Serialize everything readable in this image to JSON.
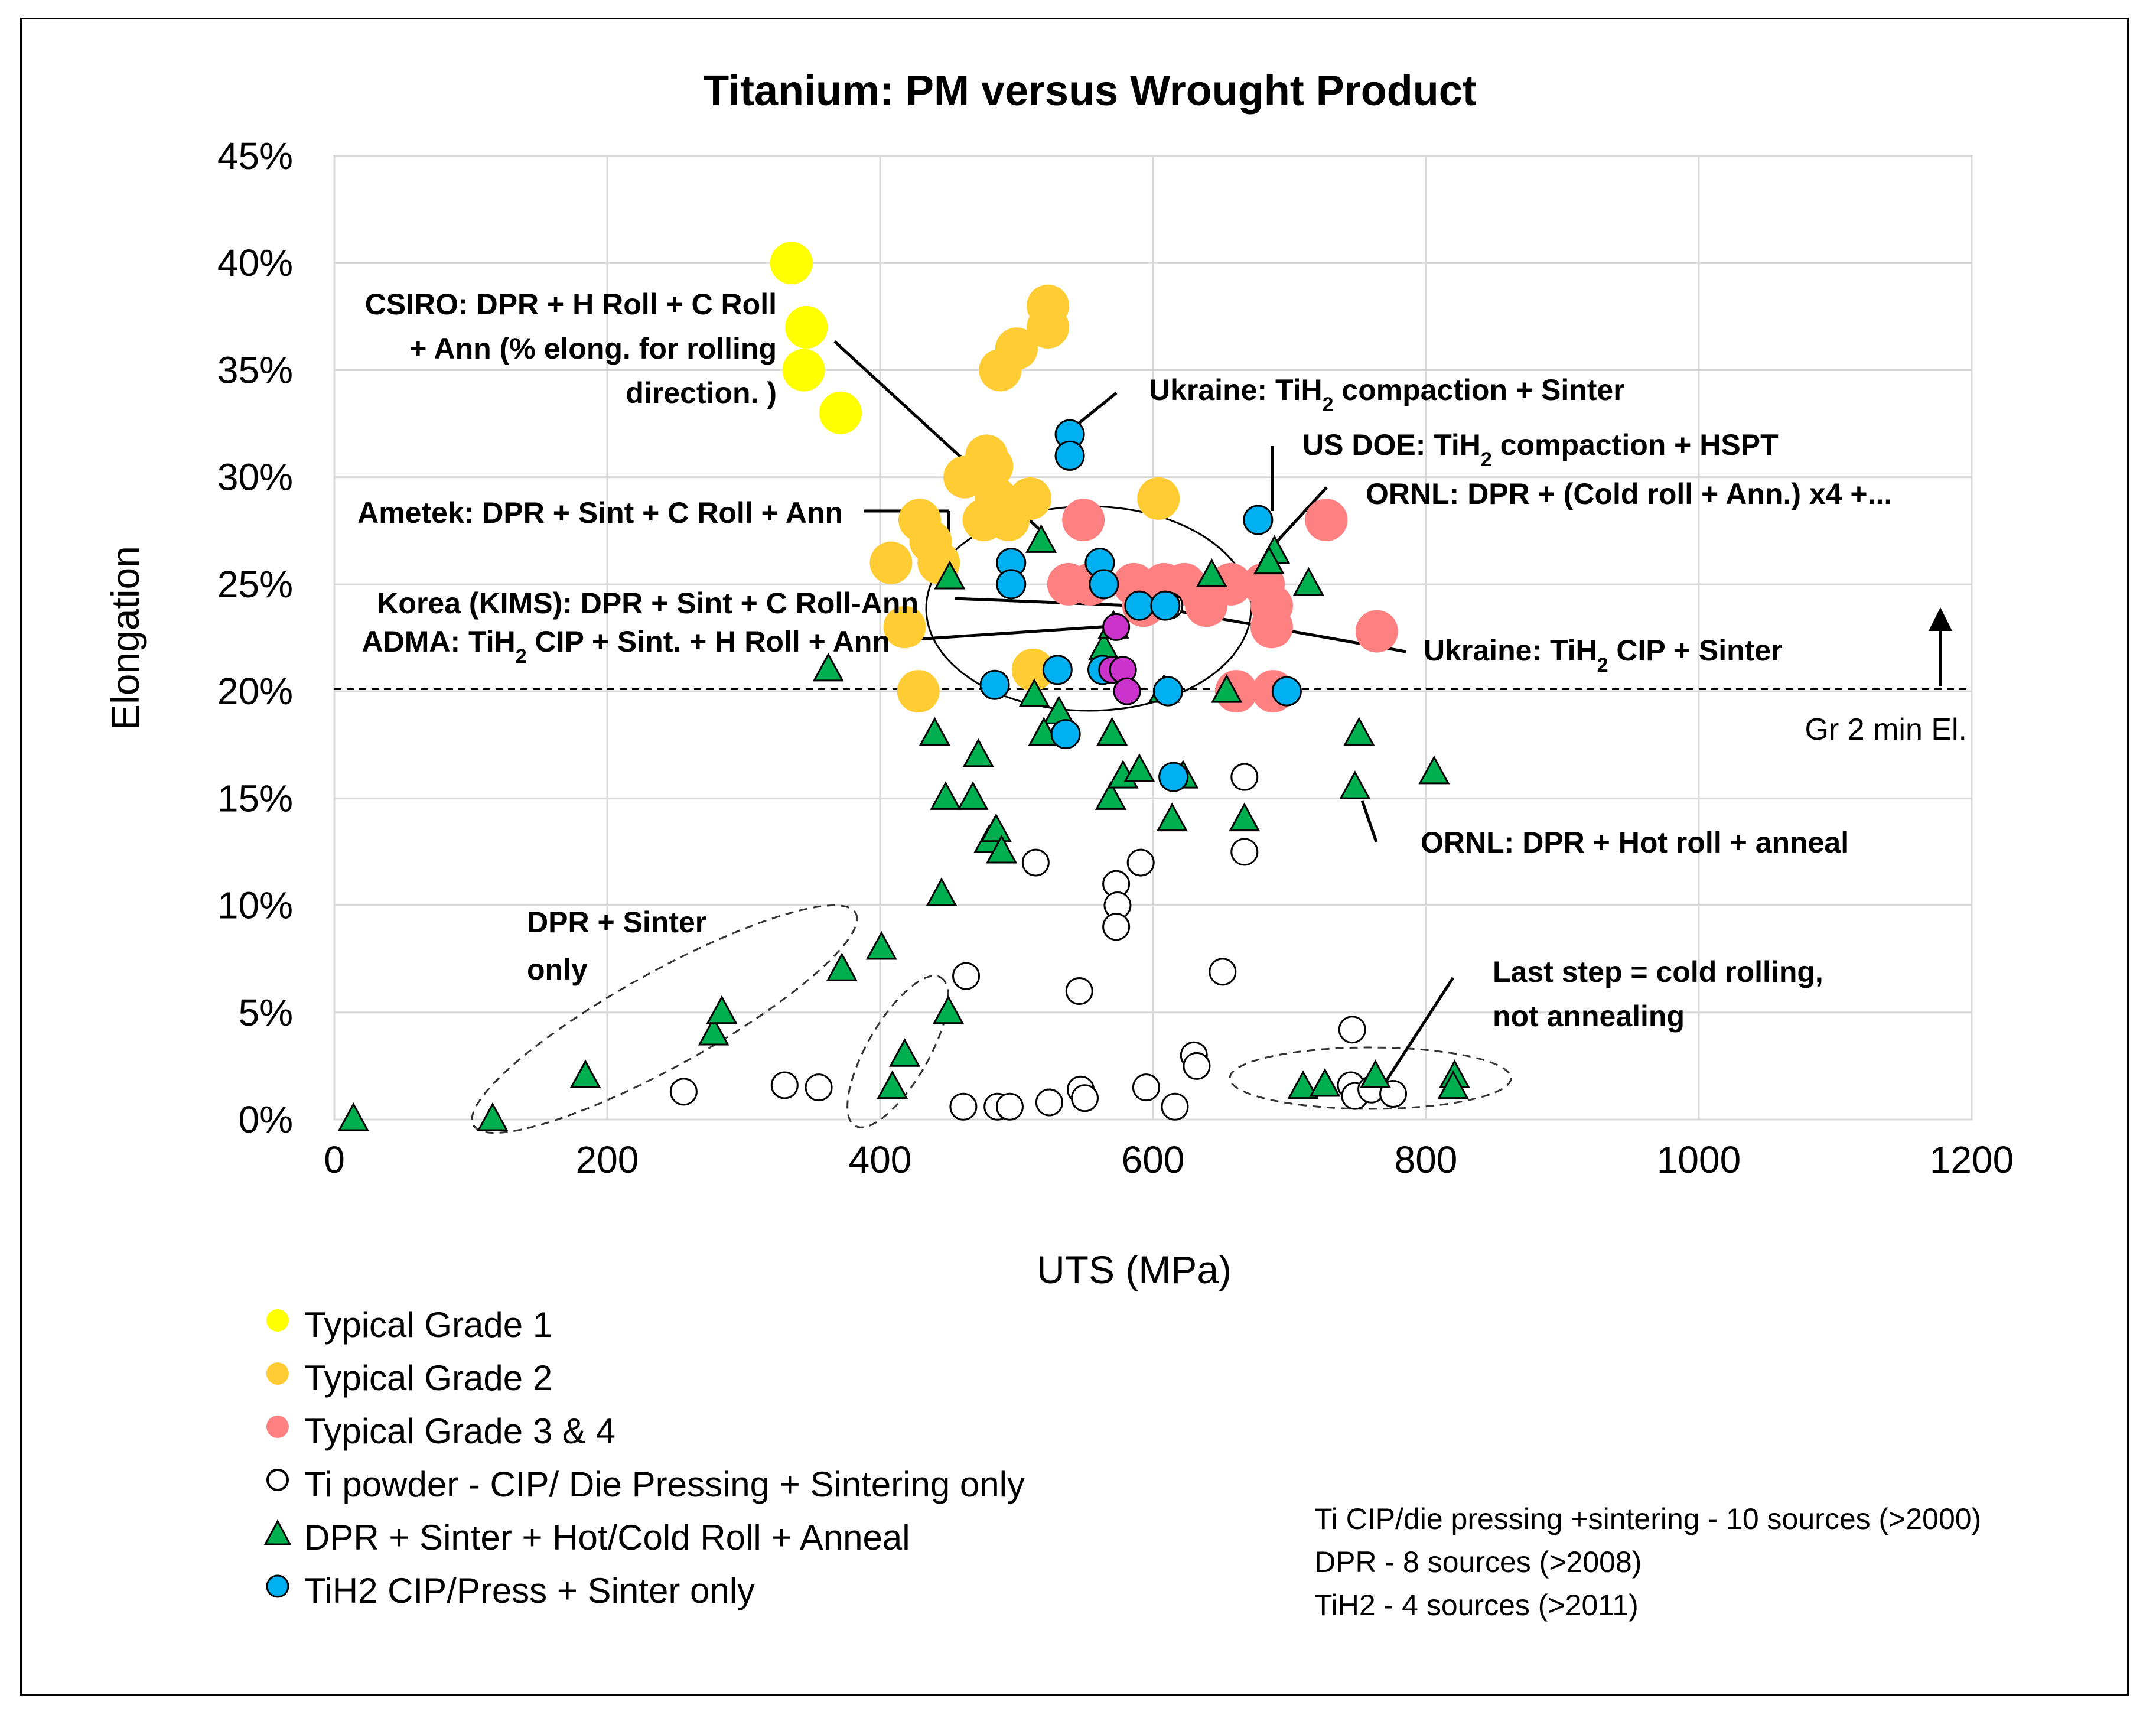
{
  "chart_data": {
    "type": "scatter",
    "title": "Titanium: PM versus Wrought Product",
    "xlabel": "UTS (MPa)",
    "ylabel": "Elongation",
    "xlim": [
      0,
      1200
    ],
    "ylim": [
      0,
      45
    ],
    "xticks": [
      "0",
      "200",
      "400",
      "600",
      "800",
      "1000",
      "1200"
    ],
    "xtick_values": [
      0,
      200,
      400,
      600,
      800,
      1000,
      1200
    ],
    "yticks": [
      "0%",
      "5%",
      "10%",
      "15%",
      "20%",
      "25%",
      "30%",
      "35%",
      "40%",
      "45%"
    ],
    "ytick_values": [
      0,
      5,
      10,
      15,
      20,
      25,
      30,
      35,
      40,
      45
    ],
    "grid": true,
    "reference_line": {
      "y": 20.1,
      "label": "Gr 2 min El."
    },
    "series": [
      {
        "name": "Typical Grade 1",
        "marker": "circle-large",
        "color": "#FFFF00",
        "points": [
          [
            335,
            40
          ],
          [
            346,
            37
          ],
          [
            344,
            35
          ],
          [
            371,
            33
          ]
        ]
      },
      {
        "name": "Typical Grade 2",
        "marker": "circle-large",
        "color": "#FFCC33",
        "points": [
          [
            523,
            38
          ],
          [
            523,
            37
          ],
          [
            500,
            36
          ],
          [
            488,
            35
          ],
          [
            462,
            30
          ],
          [
            478,
            31
          ],
          [
            482,
            30.5
          ],
          [
            485,
            29
          ],
          [
            510,
            29
          ],
          [
            604,
            29
          ],
          [
            476,
            28
          ],
          [
            494,
            28
          ],
          [
            429,
            28
          ],
          [
            437,
            27
          ],
          [
            443,
            26
          ],
          [
            408,
            26
          ],
          [
            418,
            23
          ],
          [
            428,
            20
          ],
          [
            512,
            21
          ]
        ]
      },
      {
        "name": "Typical Grade 3 & 4",
        "marker": "circle-large",
        "color": "#FF8080",
        "points": [
          [
            549,
            28
          ],
          [
            727,
            28
          ],
          [
            538,
            25
          ],
          [
            554,
            25
          ],
          [
            586,
            25
          ],
          [
            608,
            25
          ],
          [
            623,
            25
          ],
          [
            657,
            25
          ],
          [
            681,
            25
          ],
          [
            593,
            24
          ],
          [
            639,
            24
          ],
          [
            687,
            24
          ],
          [
            687,
            23
          ],
          [
            764,
            22.8
          ],
          [
            661,
            20
          ],
          [
            688,
            20
          ]
        ]
      },
      {
        "name": "Ti powder - CIP/ Die Pressing + Sintering only",
        "marker": "circle-open",
        "color": "#FFFFFF",
        "points": [
          [
            256,
            1.3
          ],
          [
            330,
            1.6
          ],
          [
            355,
            1.5
          ],
          [
            463,
            6.7
          ],
          [
            461,
            0.6
          ],
          [
            486,
            0.6
          ],
          [
            495,
            0.6
          ],
          [
            524,
            0.8
          ],
          [
            547,
            1.4
          ],
          [
            550,
            1
          ],
          [
            595,
            1.5
          ],
          [
            616,
            0.6
          ],
          [
            630,
            3
          ],
          [
            632,
            2.5
          ],
          [
            651,
            6.9
          ],
          [
            546,
            6
          ],
          [
            573,
            11
          ],
          [
            574,
            10
          ],
          [
            573,
            9
          ],
          [
            591,
            12
          ],
          [
            514,
            12
          ],
          [
            667,
            16
          ],
          [
            667,
            12.5
          ],
          [
            746,
            4.2
          ],
          [
            745,
            1.6
          ],
          [
            748,
            1.1
          ],
          [
            760,
            1.4
          ],
          [
            776,
            1.2
          ],
          [
            612,
            24
          ]
        ]
      },
      {
        "name": "DPR + Sinter + Hot/Cold Roll + Anneal",
        "marker": "triangle",
        "color": "#00B050",
        "points": [
          [
            14,
            0
          ],
          [
            116,
            0
          ],
          [
            184,
            2
          ],
          [
            278,
            4
          ],
          [
            284,
            5
          ],
          [
            372,
            7
          ],
          [
            401,
            8
          ],
          [
            362,
            21
          ],
          [
            409,
            1.5
          ],
          [
            418,
            3
          ],
          [
            450,
            5
          ],
          [
            445,
            10.5
          ],
          [
            440,
            18
          ],
          [
            448,
            15
          ],
          [
            468,
            15
          ],
          [
            472,
            17
          ],
          [
            480,
            13
          ],
          [
            485,
            13.5
          ],
          [
            489,
            12.5
          ],
          [
            451,
            25.3
          ],
          [
            518,
            27
          ],
          [
            513,
            19.8
          ],
          [
            531,
            19
          ],
          [
            520,
            18
          ],
          [
            570,
            18
          ],
          [
            569,
            15
          ],
          [
            578,
            16
          ],
          [
            590,
            16.3
          ],
          [
            614,
            14
          ],
          [
            622,
            16
          ],
          [
            654,
            20
          ],
          [
            564,
            22
          ],
          [
            571,
            23
          ],
          [
            608,
            20
          ],
          [
            643,
            25.4
          ],
          [
            667,
            14
          ],
          [
            689,
            26.5
          ],
          [
            685,
            26
          ],
          [
            714,
            25
          ],
          [
            748,
            15.5
          ],
          [
            751,
            18
          ],
          [
            806,
            16.2
          ],
          [
            710,
            1.5
          ],
          [
            726,
            1.6
          ],
          [
            763,
            2
          ],
          [
            821,
            2
          ],
          [
            820,
            1.5
          ]
        ]
      },
      {
        "name": "TiH2 CIP/Press + Sinter only",
        "marker": "circle",
        "color": "#00B0F0",
        "points": [
          [
            539,
            32
          ],
          [
            539,
            31
          ],
          [
            677,
            28
          ],
          [
            496,
            26
          ],
          [
            496,
            25
          ],
          [
            561,
            26
          ],
          [
            564,
            25
          ],
          [
            590,
            24
          ],
          [
            609,
            24
          ],
          [
            563,
            21
          ],
          [
            530,
            21
          ],
          [
            484,
            20.3
          ],
          [
            536,
            18
          ],
          [
            611,
            20
          ],
          [
            698,
            20
          ],
          [
            615,
            16
          ]
        ]
      },
      {
        "name": "ADMA TiH2",
        "marker": "circle-small",
        "color": "#CC33CC",
        "legend": false,
        "points": [
          [
            573,
            23
          ],
          [
            570,
            21
          ],
          [
            578,
            21
          ],
          [
            581,
            20
          ]
        ]
      }
    ],
    "annotations": [
      {
        "id": "csiro",
        "lines": [
          "CSIRO: DPR + H Roll + C Roll",
          "+ Ann (% elong. for rolling",
          "direction. )"
        ]
      },
      {
        "id": "ametek",
        "lines": [
          "Ametek: DPR + Sint + C Roll + Ann"
        ]
      },
      {
        "id": "ukraine_compaction",
        "lines": [
          "Ukraine: TiH",
          "2",
          " compaction + Sinter"
        ]
      },
      {
        "id": "usdoe",
        "lines": [
          "US DOE: TiH",
          "2",
          " compaction +  HSPT"
        ]
      },
      {
        "id": "ornl_cold",
        "lines": [
          "ORNL: DPR + (Cold roll + Ann.) x4 +..."
        ]
      },
      {
        "id": "korea",
        "lines": [
          "Korea (KIMS): DPR + Sint + C Roll-Ann"
        ]
      },
      {
        "id": "adma",
        "lines": [
          "ADMA: TiH",
          "2",
          " CIP + Sint. + H Roll + Ann"
        ]
      },
      {
        "id": "ukraine_cip",
        "lines": [
          "Ukraine: TiH",
          "2",
          " CIP + Sinter"
        ]
      },
      {
        "id": "ornl_hot",
        "lines": [
          "ORNL: DPR + Hot roll + anneal"
        ]
      },
      {
        "id": "dpr_sinter",
        "lines": [
          "DPR + Sinter",
          "only"
        ]
      },
      {
        "id": "last_step",
        "lines": [
          "Last step = cold rolling,",
          "not annealing"
        ]
      }
    ]
  },
  "legend": {
    "items": [
      {
        "label": "Typical Grade 1",
        "marker": "circle",
        "color": "#FFFF00"
      },
      {
        "label": "Typical Grade 2",
        "marker": "circle",
        "color": "#FFCC33"
      },
      {
        "label": "Typical Grade 3 & 4",
        "marker": "circle",
        "color": "#FF8080"
      },
      {
        "label": "Ti powder - CIP/ Die Pressing + Sintering only",
        "marker": "circle-open",
        "color": "#FFFFFF"
      },
      {
        "label": "DPR + Sinter + Hot/Cold Roll + Anneal",
        "marker": "triangle",
        "color": "#00B050"
      },
      {
        "label": "TiH2 CIP/Press + Sinter only",
        "marker": "circle",
        "color": "#00B0F0"
      }
    ]
  },
  "sources": {
    "line1": "Ti CIP/die pressing +sintering - 10 sources (>2000)",
    "line2": "DPR - 8 sources (>2008)",
    "line3": "TiH2 - 4 sources (>2011)"
  }
}
